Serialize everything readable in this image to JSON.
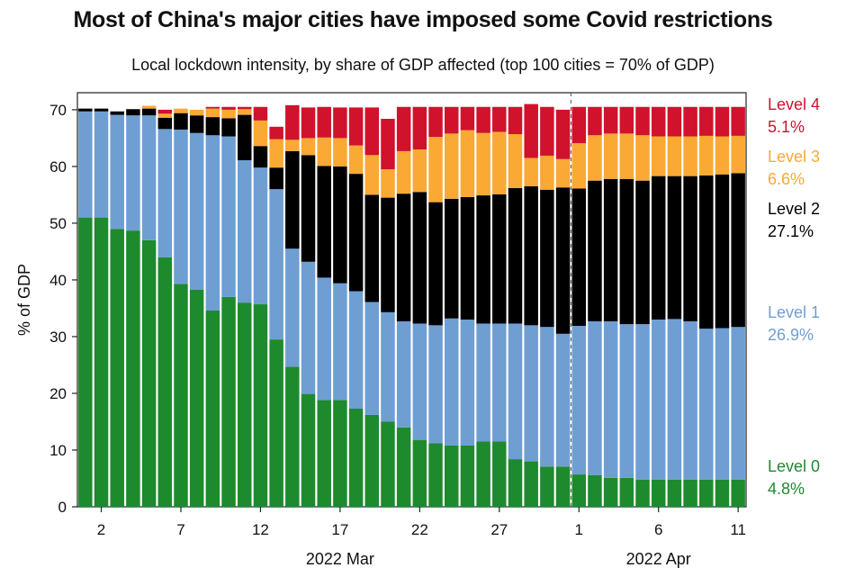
{
  "title": "Most of China's major cities have imposed some Covid restrictions",
  "subtitle": "Local lockdown intensity, by share of GDP affected (top 100 cities = 70% of GDP)",
  "chart_data": {
    "type": "bar",
    "stacked": true,
    "title": "Most of China's major cities have imposed some Covid restrictions",
    "subtitle": "Local lockdown intensity, by share of GDP affected (top 100 cities = 70% of GDP)",
    "ylabel": "% of GDP",
    "ylim": [
      0,
      73
    ],
    "yticks": [
      0,
      10,
      20,
      30,
      40,
      50,
      60,
      70
    ],
    "x_tick_labels": [
      "2",
      "7",
      "12",
      "17",
      "22",
      "27",
      "1",
      "6",
      "11"
    ],
    "x_period_labels": [
      "2022 Mar",
      "2022 Apr"
    ],
    "categories": [
      "Mar 1",
      "Mar 2",
      "Mar 3",
      "Mar 4",
      "Mar 5",
      "Mar 6",
      "Mar 7",
      "Mar 8",
      "Mar 9",
      "Mar 10",
      "Mar 11",
      "Mar 12",
      "Mar 13",
      "Mar 14",
      "Mar 15",
      "Mar 16",
      "Mar 17",
      "Mar 18",
      "Mar 19",
      "Mar 20",
      "Mar 21",
      "Mar 22",
      "Mar 23",
      "Mar 24",
      "Mar 25",
      "Mar 26",
      "Mar 27",
      "Mar 28",
      "Mar 29",
      "Mar 30",
      "Mar 31",
      "Apr 1",
      "Apr 2",
      "Apr 3",
      "Apr 4",
      "Apr 5",
      "Apr 6",
      "Apr 7",
      "Apr 8",
      "Apr 9",
      "Apr 10",
      "Apr 11"
    ],
    "series": [
      {
        "name": "Level 0",
        "color": "#1e8a2e",
        "values": [
          51,
          51,
          49,
          48.7,
          47,
          44,
          39.3,
          38.3,
          34.6,
          37,
          36,
          35.7,
          29.5,
          24.7,
          19.9,
          18.8,
          18.8,
          17.3,
          16.2,
          15,
          14,
          11.8,
          11.2,
          10.8,
          10.8,
          11.5,
          11.5,
          8.4,
          8,
          7.1,
          7.1,
          5.7,
          5.6,
          5.1,
          5.1,
          4.8,
          4.8,
          4.8,
          4.8,
          4.8,
          4.8,
          4.8
        ]
      },
      {
        "name": "Level 1",
        "color": "#6f9ed3",
        "values": [
          18.7,
          18.7,
          20.1,
          20.3,
          22,
          22.6,
          27.2,
          27.6,
          30.9,
          28.3,
          25.1,
          24.1,
          26.5,
          20.8,
          23.3,
          21.6,
          20.6,
          20.7,
          19.9,
          19.3,
          18.7,
          20.5,
          20.8,
          22.4,
          22.2,
          20.8,
          20.8,
          23.9,
          24,
          24.6,
          23.4,
          26.2,
          27.1,
          27.6,
          27.1,
          27.4,
          28.2,
          28.3,
          27.9,
          26.6,
          26.7,
          26.9
        ]
      },
      {
        "name": "Level 2",
        "color": "#000000",
        "values": [
          0.5,
          0.5,
          0.6,
          1.1,
          1.2,
          2,
          2.9,
          3.1,
          3.2,
          3.2,
          8,
          3.8,
          3.8,
          17.2,
          18.8,
          19.7,
          20.6,
          20.7,
          18.9,
          20.2,
          22.5,
          23.2,
          21.7,
          21.1,
          21.6,
          22.6,
          22.8,
          23.9,
          24.5,
          24.2,
          25.8,
          24.2,
          24.8,
          25.1,
          25.6,
          25.3,
          25.3,
          25.2,
          25.6,
          27,
          27.1,
          27.1
        ]
      },
      {
        "name": "Level 3",
        "color": "#f9a934",
        "values": [
          0,
          0,
          0,
          0,
          0.5,
          0.7,
          0.8,
          1,
          1.5,
          1.5,
          1,
          4.5,
          5,
          2,
          3,
          5,
          5,
          5,
          7,
          5,
          7.5,
          7.5,
          11.5,
          11.5,
          11.8,
          11,
          11,
          9.5,
          5,
          6,
          5,
          8,
          8,
          8,
          8,
          8,
          7,
          7,
          7,
          7,
          6.7,
          6.6
        ]
      },
      {
        "name": "Level 4",
        "color": "#d0122d",
        "values": [
          0,
          0,
          0,
          0,
          0,
          0.7,
          0,
          0,
          0.3,
          0.5,
          0.4,
          2.4,
          2.2,
          6.1,
          5.4,
          5.4,
          5.4,
          6.7,
          8.4,
          8.9,
          7.8,
          7.5,
          5.3,
          4.7,
          4.1,
          4.6,
          4.4,
          4.8,
          9.5,
          8.6,
          8.7,
          6.4,
          5,
          4.7,
          4.7,
          5,
          5.2,
          5.2,
          5.2,
          5.1,
          5.2,
          5.1
        ]
      }
    ],
    "legend": [
      {
        "label": "Level 4",
        "value": "5.1%",
        "color": "#d0122d"
      },
      {
        "label": "Level 3",
        "value": "6.6%",
        "color": "#f9a934"
      },
      {
        "label": "Level 2",
        "value": "27.1%",
        "color": "#000000"
      },
      {
        "label": "Level 1",
        "value": "26.9%",
        "color": "#6f9ed3"
      },
      {
        "label": "Level 0",
        "value": "4.8%",
        "color": "#1e8a2e"
      }
    ],
    "legend_position": "right",
    "grid": false
  }
}
